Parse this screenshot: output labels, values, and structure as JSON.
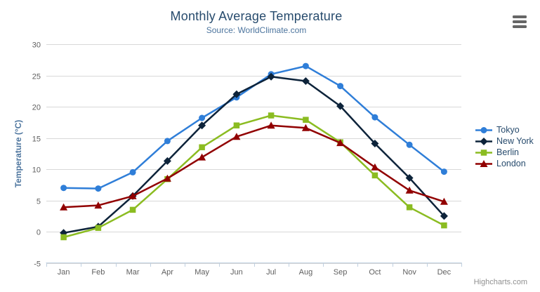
{
  "credits": {
    "label": "Highcharts.com"
  },
  "export_menu": {
    "icon": "hamburger-icon"
  },
  "colors": {
    "title": "#274b6d",
    "subtitle": "#4d759e",
    "axis_label": "#606060",
    "axis_line": "#c0d0e0",
    "gridline": "#d8d8d8",
    "legend_text": "#274b6d",
    "menu_icon": "#666666",
    "credit": "#909090"
  },
  "chart_data": {
    "type": "line",
    "title": "Monthly Average Temperature",
    "subtitle": "Source: WorldClimate.com",
    "categories": [
      "Jan",
      "Feb",
      "Mar",
      "Apr",
      "May",
      "Jun",
      "Jul",
      "Aug",
      "Sep",
      "Oct",
      "Nov",
      "Dec"
    ],
    "series": [
      {
        "name": "Tokyo",
        "color": "#2f7ed8",
        "marker": "circle",
        "values": [
          7.0,
          6.9,
          9.5,
          14.5,
          18.2,
          21.5,
          25.2,
          26.5,
          23.3,
          18.3,
          13.9,
          9.6
        ]
      },
      {
        "name": "New York",
        "color": "#0d233a",
        "marker": "diamond",
        "values": [
          -0.2,
          0.8,
          5.7,
          11.3,
          17.0,
          22.0,
          24.8,
          24.1,
          20.1,
          14.1,
          8.6,
          2.5
        ]
      },
      {
        "name": "Berlin",
        "color": "#8bbc21",
        "marker": "square",
        "values": [
          -0.9,
          0.6,
          3.5,
          8.4,
          13.5,
          17.0,
          18.6,
          17.9,
          14.3,
          9.0,
          3.9,
          1.0
        ]
      },
      {
        "name": "London",
        "color": "#910000",
        "marker": "triangle",
        "values": [
          3.9,
          4.2,
          5.7,
          8.5,
          11.9,
          15.2,
          17.0,
          16.6,
          14.2,
          10.3,
          6.6,
          4.8
        ]
      }
    ],
    "xlabel": "",
    "ylabel": "Temperature (°C)",
    "ylim": [
      -5,
      30
    ],
    "ytick_step": 5,
    "grid": true,
    "legend_position": "right"
  }
}
